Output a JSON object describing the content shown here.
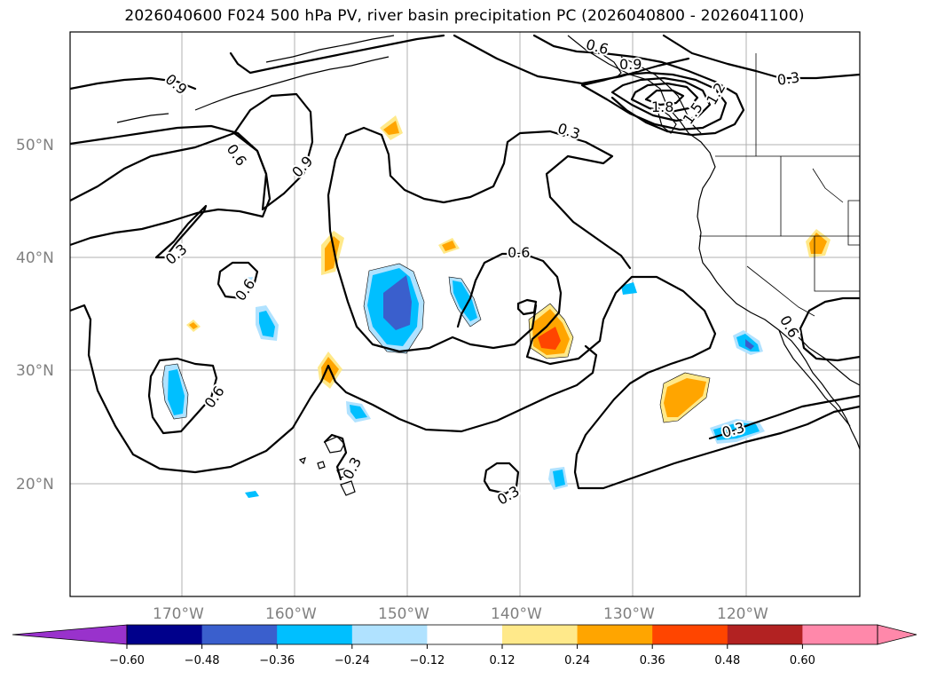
{
  "title": "2026040600 F024 500 hPa PV, river basin precipitation PC (2026040800 - 2026041100)",
  "map": {
    "lat_labels": [
      "50°N",
      "40°N",
      "30°N",
      "20°N"
    ],
    "lon_labels": [
      "170°W",
      "160°W",
      "150°W",
      "140°W",
      "130°W",
      "120°W"
    ]
  },
  "contour_labels": [
    "0.9",
    "0.6",
    "0.6",
    "0.9",
    "0.3",
    "0.6",
    "0.6",
    "0.3",
    "0.3",
    "0.6",
    "0.3",
    "0.9",
    "1.2",
    "1.5",
    "1.8",
    "0.3",
    "0.6",
    "0.3",
    "0.3"
  ],
  "colorbar": {
    "ticks": [
      "−0.60",
      "−0.48",
      "−0.36",
      "−0.24",
      "−0.12",
      "0.12",
      "0.24",
      "0.36",
      "0.48",
      "0.60"
    ],
    "colors": [
      "#9932cc",
      "#00008b",
      "#3a5fcd",
      "#00bfff",
      "#b0e2ff",
      "#ffffff",
      "#ffe98a",
      "#ffa500",
      "#ff4500",
      "#b22222",
      "#ff88aa",
      "#ff88aa"
    ]
  },
  "colors": {
    "neg_light": "#b0e2ff",
    "neg_mid": "#00bfff",
    "neg_dark": "#3a5fcd",
    "pos_light": "#ffe98a",
    "pos_mid": "#ffa500",
    "pos_dark": "#ff4500"
  }
}
